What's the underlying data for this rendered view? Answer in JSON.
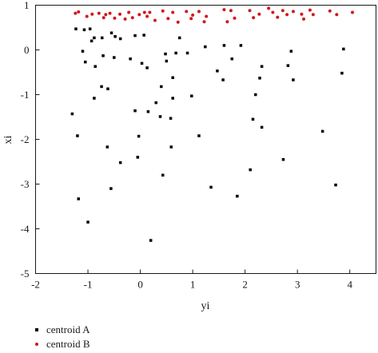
{
  "chart_data": {
    "type": "scatter",
    "xlabel": "yi",
    "ylabel": "xi",
    "xlim": [
      -2,
      4.5
    ],
    "ylim": [
      -5,
      1
    ],
    "xticks": [
      "-2",
      "-1",
      "0",
      "1",
      "2",
      "3",
      "4"
    ],
    "yticks": [
      "1",
      "0",
      "-1",
      "-2",
      "-3",
      "-4",
      "-5"
    ],
    "grid": false,
    "legend_position": "bottom-left",
    "series": [
      {
        "name": "centroid A",
        "color": "#000000",
        "points": [
          [
            -1.23,
            0.47
          ],
          [
            -1.07,
            0.45
          ],
          [
            -0.96,
            0.47
          ],
          [
            -1.1,
            -0.03
          ],
          [
            -1.05,
            -0.27
          ],
          [
            -0.93,
            0.2
          ],
          [
            -0.88,
            0.27
          ],
          [
            -0.73,
            0.27
          ],
          [
            -0.55,
            0.38
          ],
          [
            -0.48,
            0.3
          ],
          [
            -0.38,
            0.25
          ],
          [
            -0.1,
            0.32
          ],
          [
            0.07,
            0.33
          ],
          [
            0.13,
            -0.4
          ],
          [
            -0.71,
            -0.13
          ],
          [
            -0.5,
            -0.17
          ],
          [
            -0.19,
            -0.2
          ],
          [
            0.03,
            -0.3
          ],
          [
            -0.86,
            -0.37
          ],
          [
            -0.74,
            -0.82
          ],
          [
            -0.88,
            -1.08
          ],
          [
            -0.62,
            -0.87
          ],
          [
            -0.1,
            -1.36
          ],
          [
            0.15,
            -1.38
          ],
          [
            0.38,
            -1.49
          ],
          [
            0.3,
            -1.18
          ],
          [
            0.4,
            -0.82
          ],
          [
            0.5,
            -0.25
          ],
          [
            0.48,
            -0.09
          ],
          [
            0.68,
            -0.07
          ],
          [
            0.75,
            0.27
          ],
          [
            0.9,
            -0.07
          ],
          [
            1.24,
            0.07
          ],
          [
            0.62,
            -0.62
          ],
          [
            0.62,
            -1.08
          ],
          [
            0.58,
            -1.53
          ],
          [
            0.98,
            -1.03
          ],
          [
            1.12,
            -1.92
          ],
          [
            -1.3,
            -1.43
          ],
          [
            -1.2,
            -1.92
          ],
          [
            -0.63,
            -2.17
          ],
          [
            -0.03,
            -1.93
          ],
          [
            0.59,
            -2.17
          ],
          [
            -0.38,
            -2.52
          ],
          [
            -0.05,
            -2.4
          ],
          [
            0.43,
            -2.8
          ],
          [
            1.35,
            -3.07
          ],
          [
            1.85,
            -3.27
          ],
          [
            -1.18,
            -3.33
          ],
          [
            -0.56,
            -3.1
          ],
          [
            -1.0,
            -3.85
          ],
          [
            0.2,
            -4.26
          ],
          [
            1.47,
            -0.47
          ],
          [
            1.58,
            -0.67
          ],
          [
            1.6,
            0.1
          ],
          [
            1.75,
            -0.2
          ],
          [
            1.92,
            0.1
          ],
          [
            2.1,
            -2.68
          ],
          [
            2.15,
            -1.55
          ],
          [
            2.2,
            -1.0
          ],
          [
            2.28,
            -0.63
          ],
          [
            2.32,
            -0.37
          ],
          [
            2.32,
            -1.73
          ],
          [
            2.73,
            -2.45
          ],
          [
            2.82,
            -0.35
          ],
          [
            2.88,
            -0.03
          ],
          [
            2.92,
            -0.67
          ],
          [
            3.48,
            -1.82
          ],
          [
            3.73,
            -3.02
          ],
          [
            3.85,
            -0.52
          ],
          [
            3.88,
            0.02
          ]
        ]
      },
      {
        "name": "centroid B",
        "color": "#d0191b",
        "points": [
          [
            -1.24,
            0.82
          ],
          [
            -1.18,
            0.85
          ],
          [
            -1.02,
            0.75
          ],
          [
            -0.92,
            0.8
          ],
          [
            -0.79,
            0.82
          ],
          [
            -0.7,
            0.72
          ],
          [
            -0.66,
            0.79
          ],
          [
            -0.58,
            0.82
          ],
          [
            -0.49,
            0.71
          ],
          [
            -0.39,
            0.8
          ],
          [
            -0.29,
            0.69
          ],
          [
            -0.22,
            0.84
          ],
          [
            -0.15,
            0.72
          ],
          [
            -0.02,
            0.79
          ],
          [
            0.08,
            0.84
          ],
          [
            0.13,
            0.75
          ],
          [
            0.18,
            0.84
          ],
          [
            0.28,
            0.66
          ],
          [
            0.43,
            0.87
          ],
          [
            0.53,
            0.7
          ],
          [
            0.62,
            0.84
          ],
          [
            0.72,
            0.62
          ],
          [
            0.88,
            0.86
          ],
          [
            0.97,
            0.7
          ],
          [
            1.0,
            0.78
          ],
          [
            1.12,
            0.86
          ],
          [
            1.22,
            0.63
          ],
          [
            1.26,
            0.75
          ],
          [
            1.6,
            0.9
          ],
          [
            1.66,
            0.63
          ],
          [
            1.73,
            0.88
          ],
          [
            1.8,
            0.71
          ],
          [
            2.09,
            0.88
          ],
          [
            2.16,
            0.72
          ],
          [
            2.27,
            0.8
          ],
          [
            2.45,
            0.93
          ],
          [
            2.53,
            0.84
          ],
          [
            2.62,
            0.73
          ],
          [
            2.72,
            0.88
          ],
          [
            2.8,
            0.79
          ],
          [
            2.92,
            0.86
          ],
          [
            3.08,
            0.8
          ],
          [
            3.12,
            0.69
          ],
          [
            3.24,
            0.89
          ],
          [
            3.3,
            0.79
          ],
          [
            3.62,
            0.87
          ],
          [
            3.75,
            0.79
          ],
          [
            4.05,
            0.84
          ]
        ]
      }
    ]
  }
}
